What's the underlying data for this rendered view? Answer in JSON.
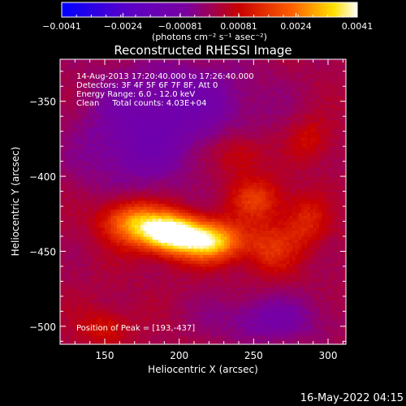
{
  "chart_data": {
    "type": "heatmap",
    "title": "Reconstructed RHESSI Image",
    "xlabel": "Heliocentric X (arcsec)",
    "ylabel": "Heliocentric Y (arcsec)",
    "xlim": [
      120,
      312
    ],
    "ylim": [
      -512,
      -322
    ],
    "x_ticks": [
      "150",
      "200",
      "250",
      "300"
    ],
    "y_ticks": [
      "-350",
      "-400",
      "-450",
      "-500"
    ],
    "x_tick_values": [
      150,
      200,
      250,
      300
    ],
    "y_tick_values": [
      -350,
      -400,
      -450,
      -500
    ],
    "colorbar": {
      "range": [
        -0.0041,
        0.0041
      ],
      "tick_labels": [
        "-0.0041",
        "-0.0024",
        "-0.00081",
        "0.00081",
        "0.0024",
        "0.0041"
      ],
      "tick_values": [
        -0.0041,
        -0.0024,
        -0.00081,
        0.00081,
        0.0024,
        0.0041
      ],
      "unit_label": "(photons cm⁻² s⁻¹ asec⁻²)",
      "colors": [
        "#0000ff",
        "#5a00c8",
        "#7a00a0",
        "#c80000",
        "#ff6000",
        "#ffe000",
        "#ffffff"
      ]
    },
    "annotations": {
      "time": "14-Aug-2013 17:20:40.000 to 17:26:40.000",
      "detectors": "Detectors: 3F 4F 5F 6F 7F 8F, Att 0",
      "energy": "Energy Range: 6.0 - 12.0 keV",
      "clean": "Clean     Total counts: 4.03E+04",
      "peak": "Position of Peak = [193,-437]"
    },
    "peak_position": [
      193,
      -437
    ],
    "sources": [
      {
        "x": 193,
        "y": -437,
        "amplitude": 0.0041,
        "sigma_x": 14,
        "sigma_y": 9
      },
      {
        "x": 220,
        "y": -443,
        "amplitude": 0.0034,
        "sigma_x": 16,
        "sigma_y": 9
      },
      {
        "x": 168,
        "y": -430,
        "amplitude": 0.0024,
        "sigma_x": 14,
        "sigma_y": 10
      },
      {
        "x": 252,
        "y": -415,
        "amplitude": 0.0014,
        "sigma_x": 12,
        "sigma_y": 10
      },
      {
        "x": 262,
        "y": -448,
        "amplitude": 0.0012,
        "sigma_x": 12,
        "sigma_y": 12
      },
      {
        "x": 285,
        "y": -430,
        "amplitude": 0.0011,
        "sigma_x": 10,
        "sigma_y": 12
      },
      {
        "x": 150,
        "y": -500,
        "amplitude": 0.0009,
        "sigma_x": 12,
        "sigma_y": 8
      },
      {
        "x": 240,
        "y": -385,
        "amplitude": 0.0009,
        "sigma_x": 12,
        "sigma_y": 10
      },
      {
        "x": 288,
        "y": -375,
        "amplitude": 0.0008,
        "sigma_x": 10,
        "sigma_y": 10
      },
      {
        "x": 200,
        "y": -350,
        "amplitude": -0.0012,
        "sigma_x": 40,
        "sigma_y": 20
      },
      {
        "x": 170,
        "y": -385,
        "amplitude": -0.001,
        "sigma_x": 30,
        "sigma_y": 20
      },
      {
        "x": 260,
        "y": -495,
        "amplitude": -0.001,
        "sigma_x": 30,
        "sigma_y": 12
      }
    ]
  },
  "footer": {
    "timestamp": "16-May-2022 04:15"
  }
}
